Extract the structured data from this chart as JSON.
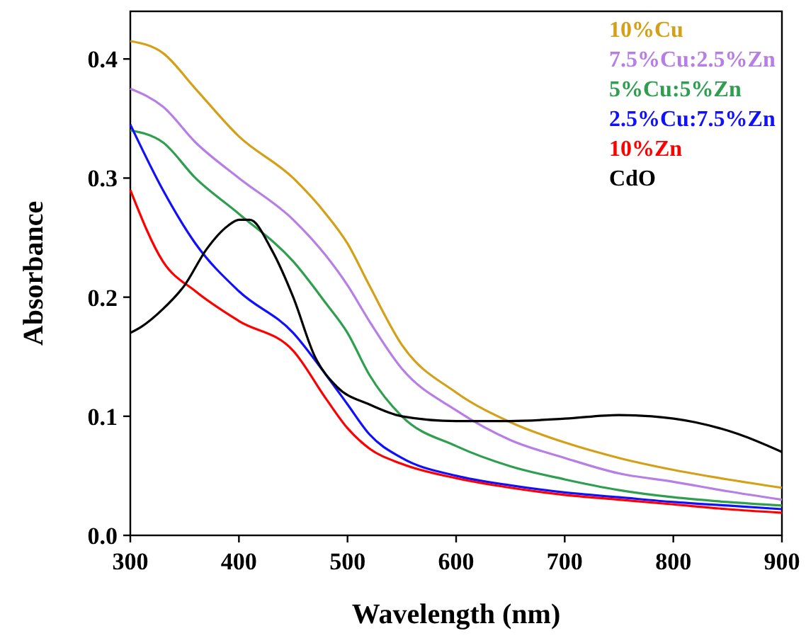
{
  "chart_data": {
    "type": "line",
    "xlabel": "Wavelength (nm)",
    "ylabel": "Absorbance",
    "xlim": [
      300,
      900
    ],
    "ylim": [
      0,
      0.44
    ],
    "xticks": [
      300,
      400,
      500,
      600,
      700,
      800,
      900
    ],
    "yticks": [
      {
        "value": 0,
        "label": "0.0"
      },
      0.1,
      0.2,
      0.3,
      0.4
    ],
    "legend": "top right",
    "grid": false,
    "marker": "none",
    "line_style": "solid",
    "x": [
      300,
      330,
      360,
      400,
      450,
      480,
      500,
      520,
      550,
      600,
      650,
      700,
      750,
      800,
      850,
      900
    ],
    "series": [
      {
        "name": "10%Cu",
        "color": "#d4a017",
        "values": [
          0.415,
          0.405,
          0.375,
          0.335,
          0.3,
          0.27,
          0.245,
          0.21,
          0.16,
          0.12,
          0.095,
          0.078,
          0.065,
          0.055,
          0.047,
          0.04
        ]
      },
      {
        "name": "7.5%Cu:2.5%Zn",
        "color": "#b77ee6",
        "values": [
          0.375,
          0.36,
          0.33,
          0.3,
          0.265,
          0.235,
          0.21,
          0.18,
          0.14,
          0.105,
          0.08,
          0.065,
          0.052,
          0.045,
          0.037,
          0.03
        ]
      },
      {
        "name": "5%Cu:5%Zn",
        "color": "#2e9e4f",
        "values": [
          0.34,
          0.33,
          0.3,
          0.27,
          0.23,
          0.195,
          0.17,
          0.135,
          0.1,
          0.075,
          0.058,
          0.047,
          0.038,
          0.032,
          0.028,
          0.025
        ]
      },
      {
        "name": "2.5%Cu:7.5%Zn",
        "color": "#1010ff",
        "values": [
          0.345,
          0.29,
          0.245,
          0.205,
          0.17,
          0.135,
          0.11,
          0.085,
          0.065,
          0.05,
          0.042,
          0.036,
          0.032,
          0.028,
          0.025,
          0.022
        ]
      },
      {
        "name": "10%Zn",
        "color": "#ff0000",
        "values": [
          0.29,
          0.23,
          0.205,
          0.18,
          0.155,
          0.115,
          0.09,
          0.073,
          0.06,
          0.048,
          0.04,
          0.034,
          0.03,
          0.026,
          0.022,
          0.019
        ]
      },
      {
        "name": "CdO",
        "color": "#000000",
        "x": [
          300,
          310,
          330,
          350,
          370,
          390,
          400,
          410,
          430,
          450,
          470,
          490,
          520,
          550,
          600,
          650,
          700,
          750,
          780,
          820,
          860,
          900
        ],
        "values": [
          0.17,
          0.175,
          0.19,
          0.21,
          0.24,
          0.26,
          0.265,
          0.265,
          0.24,
          0.2,
          0.15,
          0.125,
          0.11,
          0.1,
          0.096,
          0.096,
          0.098,
          0.101,
          0.1,
          0.095,
          0.085,
          0.07
        ]
      }
    ]
  }
}
